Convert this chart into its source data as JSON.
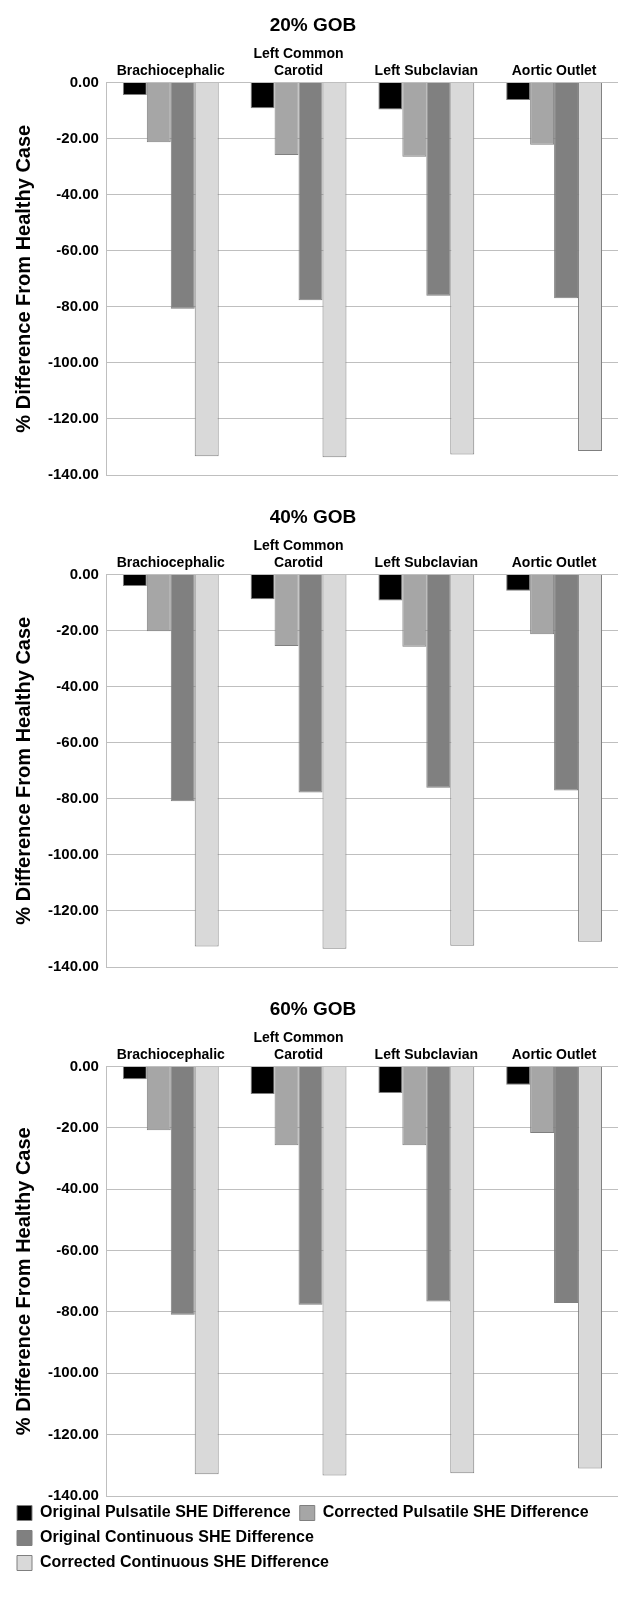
{
  "chart_data": [
    {
      "type": "bar",
      "title": "20% GOB",
      "ylabel": "% Difference From Healthy Case",
      "categories": [
        "Brachiocephalic",
        "Left Common Carotid",
        "Left Subclavian",
        "Aortic Outlet"
      ],
      "ylim": [
        -140,
        0
      ],
      "yticks": [
        {
          "value": 0,
          "label": "0.00"
        },
        {
          "value": -20,
          "label": "-20.00"
        },
        {
          "value": -40,
          "label": "-40.00"
        },
        {
          "value": -60,
          "label": "-60.00"
        },
        {
          "value": -80,
          "label": "-80.00"
        },
        {
          "value": -100,
          "label": "-100.00"
        },
        {
          "value": -120,
          "label": "-120.00"
        },
        {
          "value": -140,
          "label": "-140.00"
        }
      ],
      "grid": "y",
      "legend": false,
      "series": [
        {
          "color": "#000000",
          "values": [
            -4.5,
            -9.2,
            -9.7,
            -6.3
          ]
        },
        {
          "color": "#a6a6a6",
          "values": [
            -21.3,
            -25.9,
            -26.5,
            -22.2
          ]
        },
        {
          "color": "#808080",
          "values": [
            -80.7,
            -77.7,
            -76.1,
            -77.0
          ]
        },
        {
          "color": "#d9d9d9",
          "values": [
            -133.3,
            -133.7,
            -132.7,
            -131.4
          ]
        }
      ]
    },
    {
      "type": "bar",
      "title": "40% GOB",
      "ylabel": "% Difference From Healthy Case",
      "categories": [
        "Brachiocephalic",
        "Left Common Carotid",
        "Left Subclavian",
        "Aortic Outlet"
      ],
      "ylim": [
        -140,
        0
      ],
      "yticks": [
        {
          "value": 0,
          "label": "0.00"
        },
        {
          "value": -20,
          "label": "-20.00"
        },
        {
          "value": -40,
          "label": "-40.00"
        },
        {
          "value": -60,
          "label": "-60.00"
        },
        {
          "value": -80,
          "label": "-80.00"
        },
        {
          "value": -100,
          "label": "-100.00"
        },
        {
          "value": -120,
          "label": "-120.00"
        },
        {
          "value": -140,
          "label": "-140.00"
        }
      ],
      "grid": "y",
      "legend": false,
      "series": [
        {
          "color": "#000000",
          "values": [
            -4.1,
            -8.9,
            -9.3,
            -5.8
          ]
        },
        {
          "color": "#a6a6a6",
          "values": [
            -20.3,
            -25.5,
            -25.8,
            -21.3
          ]
        },
        {
          "color": "#808080",
          "values": [
            -80.9,
            -77.8,
            -76.1,
            -77.1
          ]
        },
        {
          "color": "#d9d9d9",
          "values": [
            -132.7,
            -133.5,
            -132.4,
            -131.0
          ]
        }
      ]
    },
    {
      "type": "bar",
      "title": "60% GOB",
      "ylabel": "% Difference From Healthy Case",
      "categories": [
        "Brachiocephalic",
        "Left Common Carotid",
        "Left Subclavian",
        "Aortic Outlet"
      ],
      "ylim": [
        -140,
        0
      ],
      "yticks": [
        {
          "value": 0,
          "label": "0.00"
        },
        {
          "value": -20,
          "label": "-20.00"
        },
        {
          "value": -40,
          "label": "-40.00"
        },
        {
          "value": -60,
          "label": "-60.00"
        },
        {
          "value": -80,
          "label": "-80.00"
        },
        {
          "value": -100,
          "label": "-100.00"
        },
        {
          "value": -120,
          "label": "-120.00"
        },
        {
          "value": -140,
          "label": "-140.00"
        }
      ],
      "grid": "y",
      "legend": "bottom",
      "series": [
        {
          "name": "Original Pulsatile SHE Difference",
          "color": "#000000",
          "values": [
            -4.2,
            -9.0,
            -8.7,
            -6.0
          ]
        },
        {
          "name": "Corrected Pulsatile SHE Difference",
          "color": "#a6a6a6",
          "values": [
            -20.8,
            -25.7,
            -25.7,
            -21.7
          ]
        },
        {
          "name": "Original Continuous SHE Difference",
          "color": "#808080",
          "values": [
            -80.9,
            -77.7,
            -76.6,
            -77.1
          ]
        },
        {
          "name": "Corrected Continuous SHE Difference",
          "color": "#d9d9d9",
          "values": [
            -132.9,
            -133.3,
            -132.6,
            -131.0
          ]
        }
      ]
    }
  ]
}
